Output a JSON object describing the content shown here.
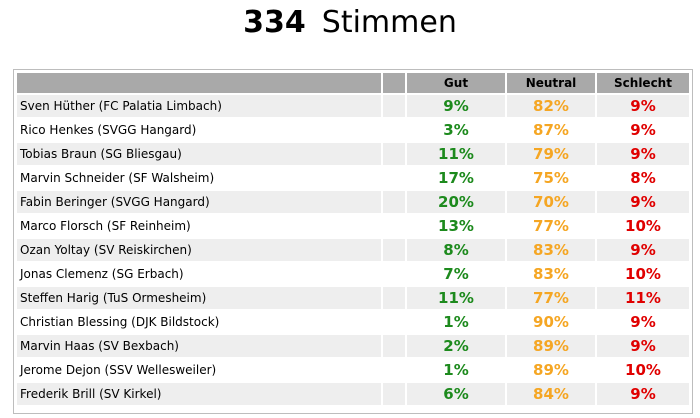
{
  "header": {
    "count": "334",
    "label": "Stimmen"
  },
  "table": {
    "columns": {
      "name": "",
      "gap": "",
      "gut": "Gut",
      "neutral": "Neutral",
      "schlecht": "Schlecht"
    },
    "rows": [
      {
        "name": "Sven Hüther (FC Palatia Limbach)",
        "gut": "9%",
        "neutral": "82%",
        "schlecht": "9%"
      },
      {
        "name": "Rico Henkes (SVGG Hangard)",
        "gut": "3%",
        "neutral": "87%",
        "schlecht": "9%"
      },
      {
        "name": "Tobias Braun (SG Bliesgau)",
        "gut": "11%",
        "neutral": "79%",
        "schlecht": "9%"
      },
      {
        "name": "Marvin Schneider (SF Walsheim)",
        "gut": "17%",
        "neutral": "75%",
        "schlecht": "8%"
      },
      {
        "name": "Fabin Beringer (SVGG Hangard)",
        "gut": "20%",
        "neutral": "70%",
        "schlecht": "9%"
      },
      {
        "name": "Marco Florsch (SF Reinheim)",
        "gut": "13%",
        "neutral": "77%",
        "schlecht": "10%"
      },
      {
        "name": "Ozan Yoltay (SV Reiskirchen)",
        "gut": "8%",
        "neutral": "83%",
        "schlecht": "9%"
      },
      {
        "name": "Jonas Clemenz (SG Erbach)",
        "gut": "7%",
        "neutral": "83%",
        "schlecht": "10%"
      },
      {
        "name": "Steffen Harig (TuS Ormesheim)",
        "gut": "11%",
        "neutral": "77%",
        "schlecht": "11%"
      },
      {
        "name": "Christian Blessing (DJK Bildstock)",
        "gut": "1%",
        "neutral": "90%",
        "schlecht": "9%"
      },
      {
        "name": "Marvin Haas (SV Bexbach)",
        "gut": "2%",
        "neutral": "89%",
        "schlecht": "9%"
      },
      {
        "name": "Jerome Dejon (SSV Wellesweiler)",
        "gut": "1%",
        "neutral": "89%",
        "schlecht": "10%"
      },
      {
        "name": "Frederik Brill (SV Kirkel)",
        "gut": "6%",
        "neutral": "84%",
        "schlecht": "9%"
      }
    ]
  },
  "colors": {
    "gut": "#1d8a1d",
    "neutral": "#f5a623",
    "schlecht": "#e00000",
    "header_bg": "#a9a9a9",
    "row_alt": "#eeeeee"
  }
}
